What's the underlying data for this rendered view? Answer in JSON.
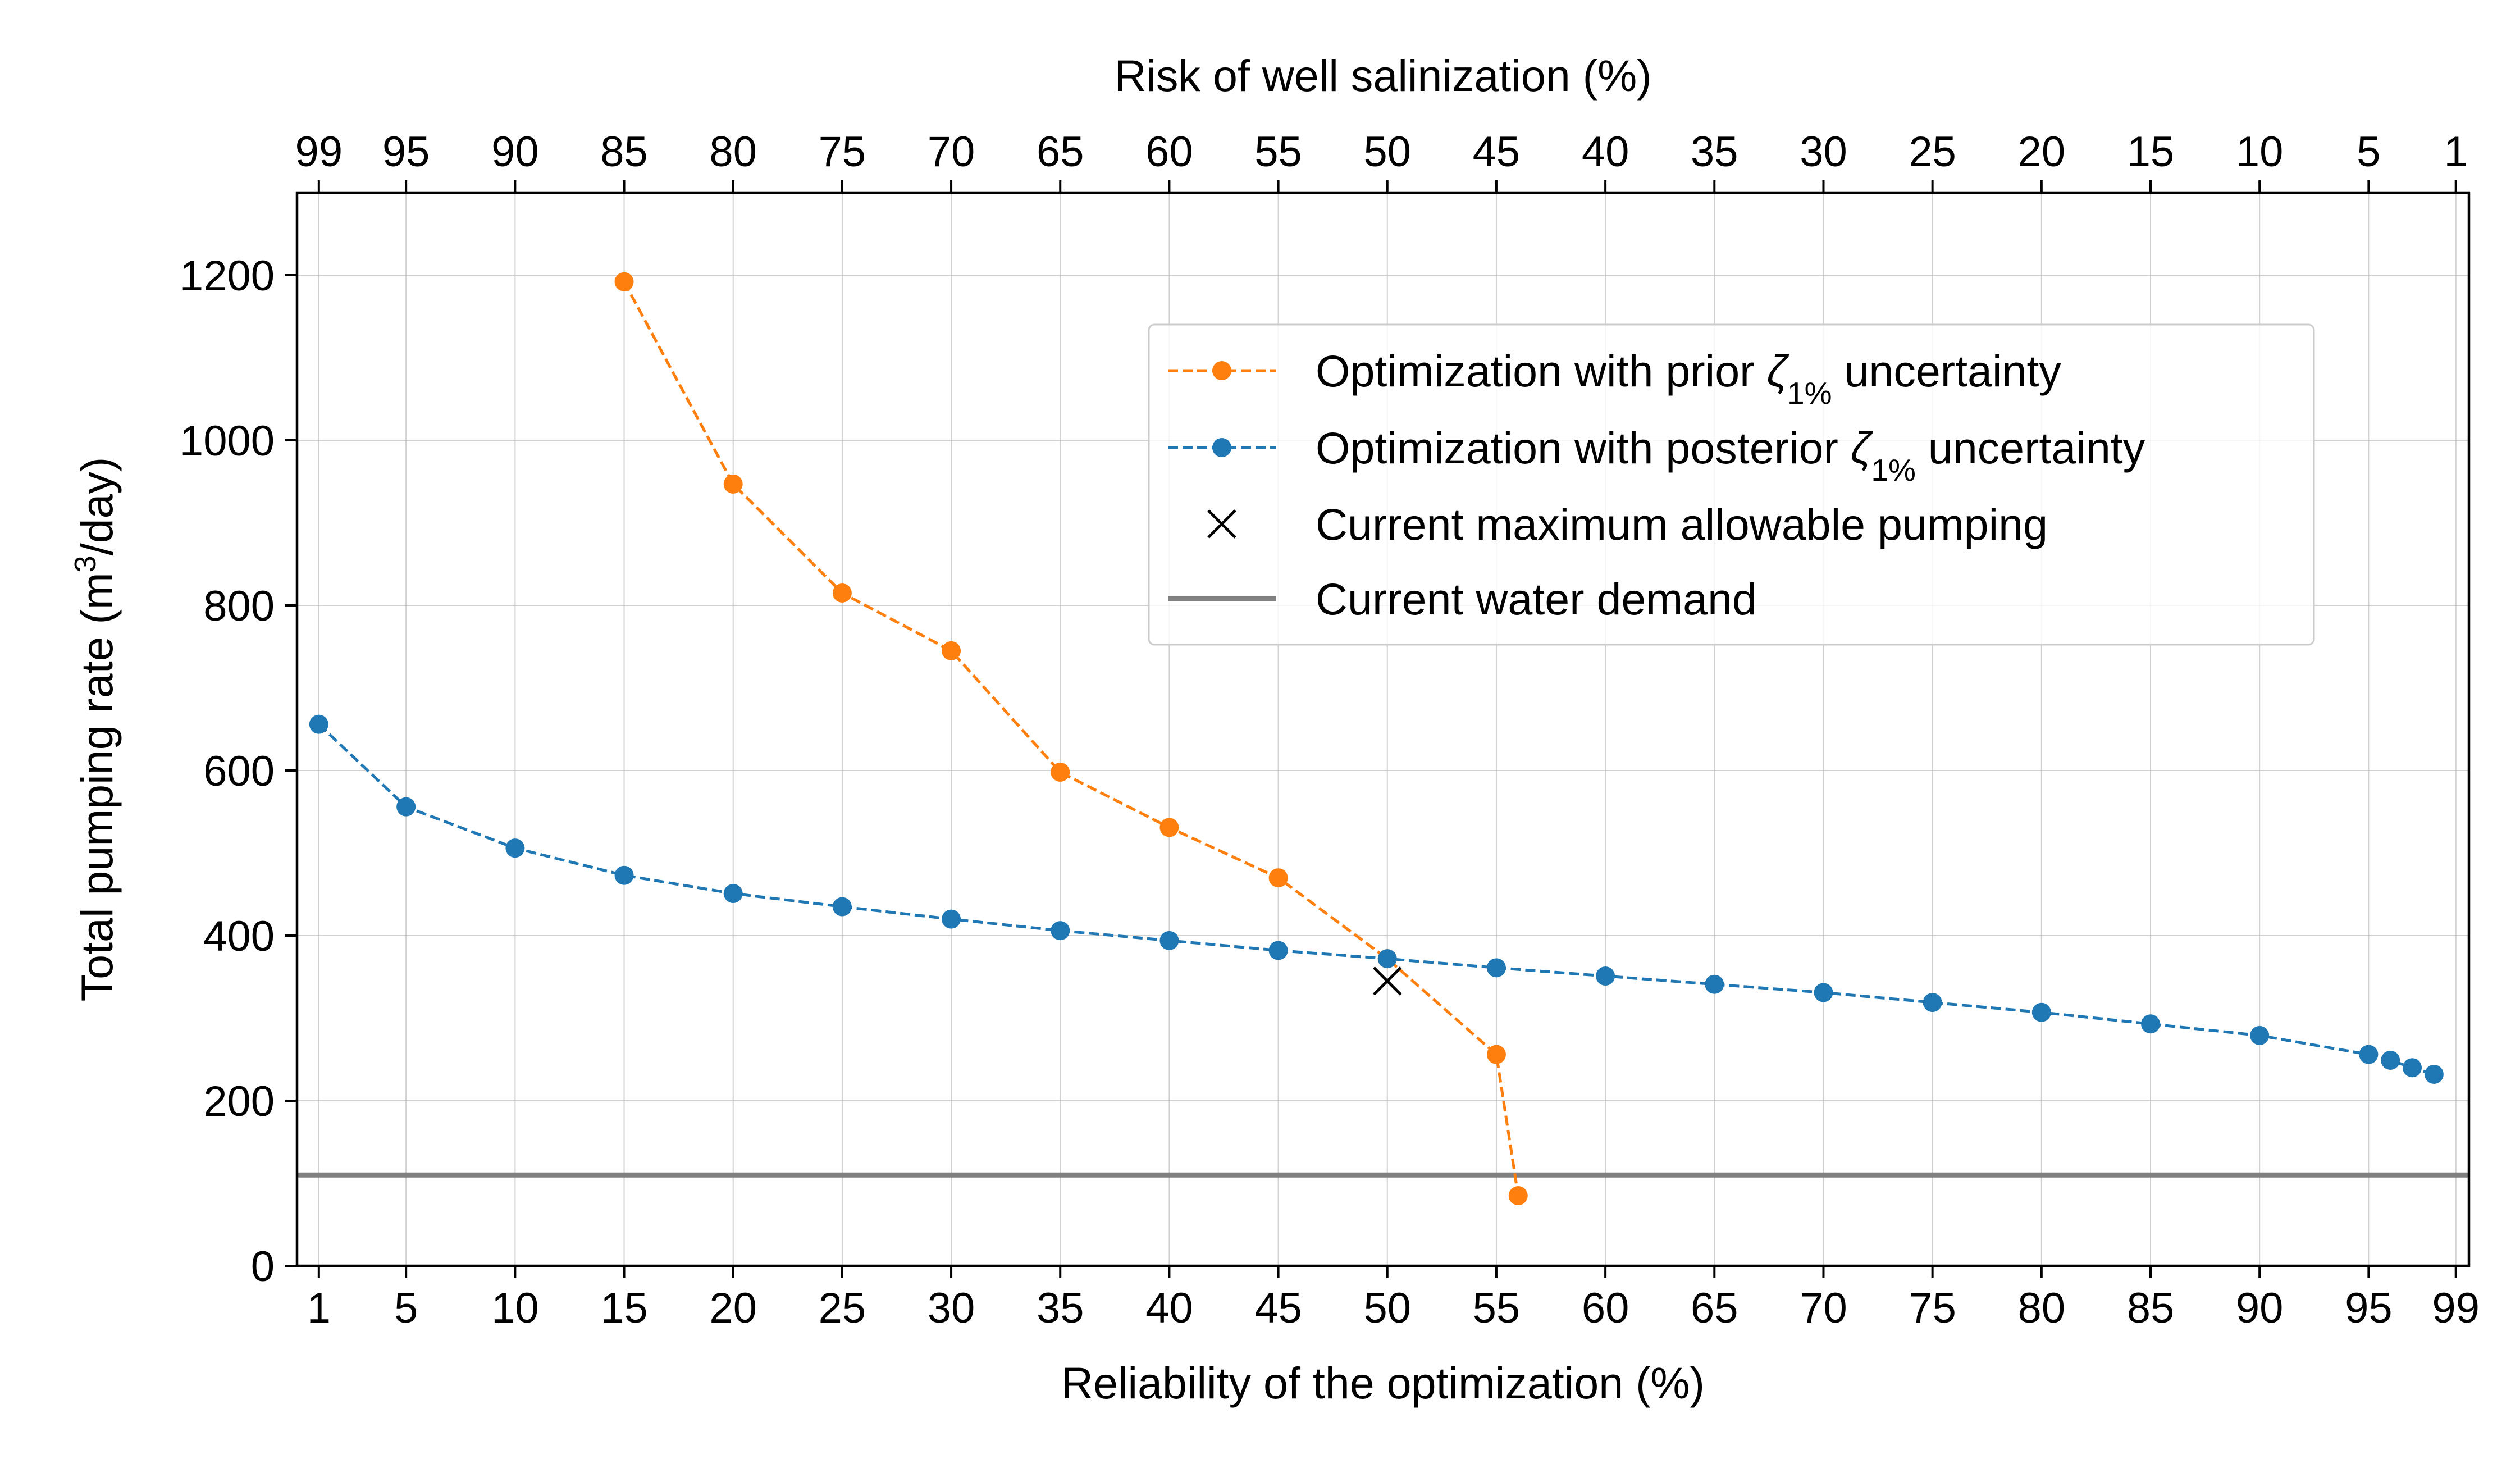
{
  "chart_data": {
    "type": "line",
    "xlabel": "Reliability of the optimization (%)",
    "ylabel_prefix": "Total pumping rate (m",
    "ylabel_sup": "3",
    "ylabel_suffix": "/day)",
    "top_xlabel": "Risk of well salinization (%)",
    "xlim": [
      0,
      99.6
    ],
    "ylim": [
      0,
      1300
    ],
    "grid": true,
    "legend_position": "upper-right",
    "x_ticks": [
      1,
      5,
      10,
      15,
      20,
      25,
      30,
      35,
      40,
      45,
      50,
      55,
      60,
      65,
      70,
      75,
      80,
      85,
      90,
      95,
      99
    ],
    "x_tick_labels": [
      "1",
      "5",
      "10",
      "15",
      "20",
      "25",
      "30",
      "35",
      "40",
      "45",
      "50",
      "55",
      "60",
      "65",
      "70",
      "75",
      "80",
      "85",
      "90",
      "95",
      "99"
    ],
    "top_x_tick_labels": [
      "99",
      "95",
      "90",
      "85",
      "80",
      "75",
      "70",
      "65",
      "60",
      "55",
      "50",
      "45",
      "40",
      "35",
      "30",
      "25",
      "20",
      "15",
      "10",
      "5",
      "1"
    ],
    "y_ticks": [
      0,
      200,
      400,
      600,
      800,
      1000,
      1200
    ],
    "y_tick_labels": [
      "0",
      "200",
      "400",
      "600",
      "800",
      "1000",
      "1200"
    ],
    "series": [
      {
        "name": "Optimization with prior ζ1% uncertainty",
        "legend_prefix": "Optimization with prior ",
        "legend_symbol": "ζ",
        "legend_sub": "1%",
        "legend_suffix": " uncertainty",
        "color": "#ff7f0e",
        "style": "dashed-dots",
        "x": [
          15,
          20,
          25,
          30,
          35,
          40,
          45,
          50,
          55,
          56
        ],
        "y": [
          1192,
          947,
          815,
          745,
          598,
          531,
          470,
          372,
          256,
          85
        ]
      },
      {
        "name": "Optimization with posterior ζ1% uncertainty",
        "legend_prefix": "Optimization with posterior ",
        "legend_symbol": "ζ",
        "legend_sub": "1%",
        "legend_suffix": " uncertainty",
        "color": "#1f77b4",
        "style": "dashed-dots",
        "x": [
          1,
          5,
          10,
          15,
          20,
          25,
          30,
          35,
          40,
          45,
          50,
          55,
          60,
          65,
          70,
          75,
          80,
          85,
          90,
          95,
          96,
          97,
          98
        ],
        "y": [
          656,
          556,
          506,
          473,
          451,
          435,
          420,
          406,
          394,
          382,
          372,
          361,
          351,
          341,
          331,
          319,
          307,
          293,
          279,
          256,
          249,
          240,
          232
        ]
      },
      {
        "name": "Current maximum allowable pumping",
        "color": "#000000",
        "style": "x-marker",
        "x": [
          50
        ],
        "y": [
          345
        ]
      },
      {
        "name": "Current water demand",
        "color": "#808080",
        "style": "hline",
        "y": [
          110
        ]
      }
    ]
  }
}
